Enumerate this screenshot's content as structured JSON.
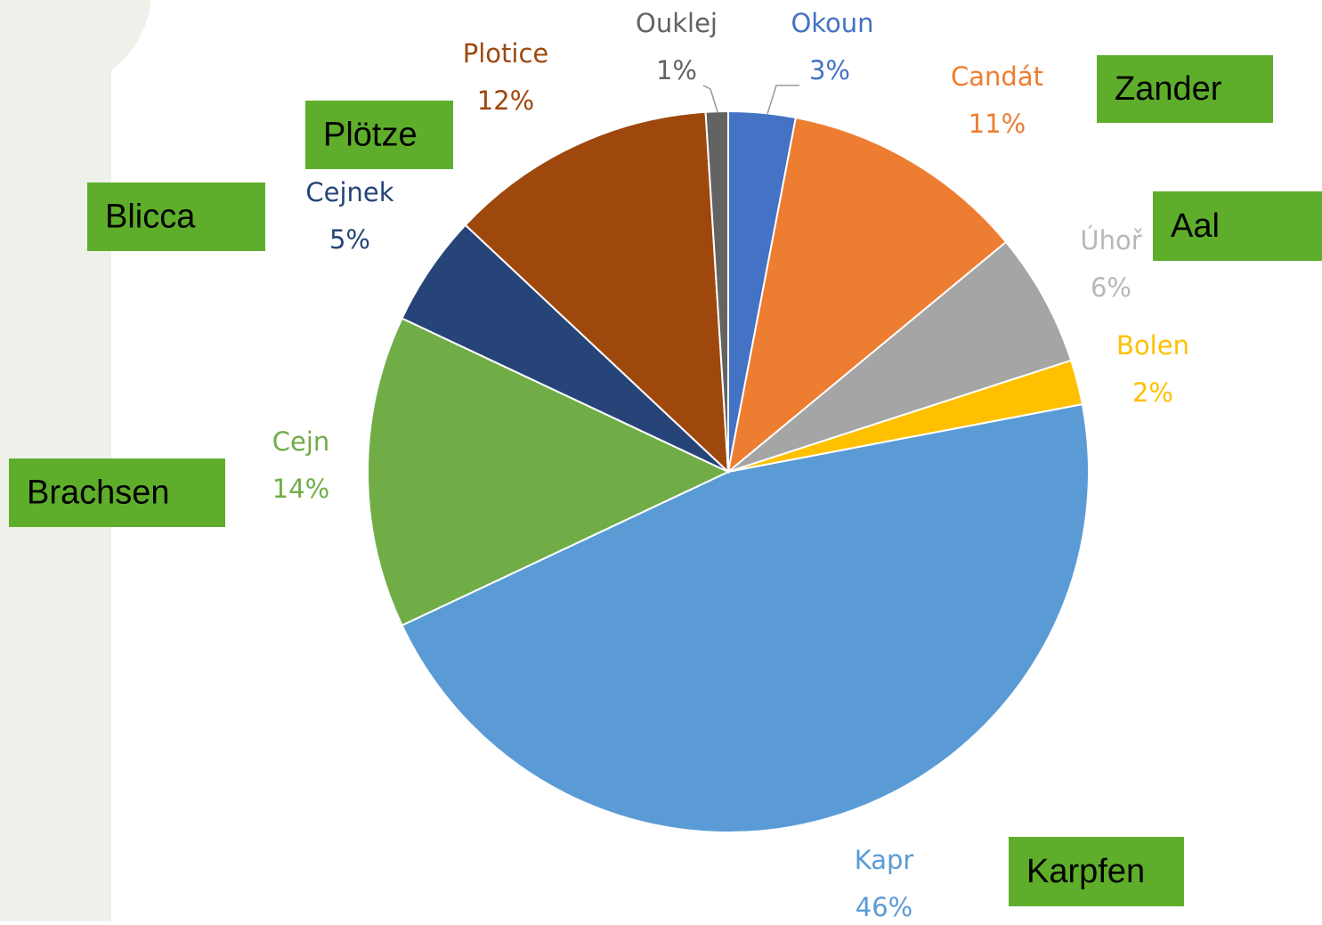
{
  "chart_data": {
    "type": "pie",
    "categories": [
      "Okoun",
      "Candát",
      "Úhoř",
      "Bolen",
      "Kapr",
      "Cejn",
      "Cejnek",
      "Plotice",
      "Ouklej"
    ],
    "values": [
      3,
      11,
      6,
      2,
      46,
      14,
      5,
      12,
      1
    ],
    "value_labels": [
      "3%",
      "11%",
      "6%",
      "2%",
      "46%",
      "14%",
      "5%",
      "12%",
      "1%"
    ],
    "colors": [
      "#4472c4",
      "#ed7d31",
      "#a5a5a5",
      "#ffc000",
      "#5b9bd5",
      "#70ad47",
      "#264478",
      "#9e480e",
      "#636363"
    ],
    "annotations": [
      "Zander",
      "Aal",
      "Plötze",
      "Blicca",
      "Brachsen",
      "Karpfen"
    ]
  }
}
